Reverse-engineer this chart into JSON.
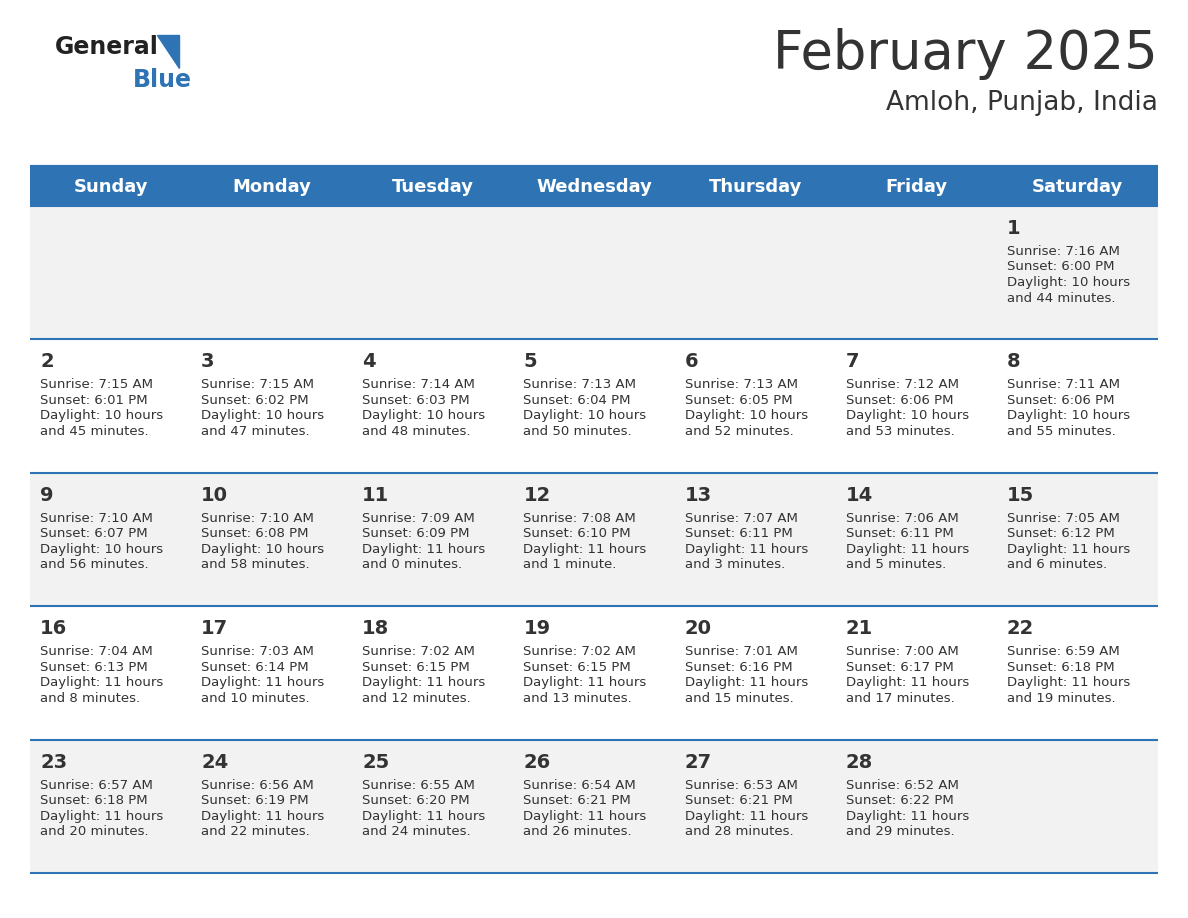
{
  "title": "February 2025",
  "subtitle": "Amloh, Punjab, India",
  "header_color": "#2E74B5",
  "header_text_color": "#FFFFFF",
  "bg_color": "#FFFFFF",
  "cell_bg_odd": "#F2F2F2",
  "cell_bg_even": "#FFFFFF",
  "text_color": "#333333",
  "days_of_week": [
    "Sunday",
    "Monday",
    "Tuesday",
    "Wednesday",
    "Thursday",
    "Friday",
    "Saturday"
  ],
  "weeks": [
    [
      {
        "day": "",
        "sunrise": "",
        "sunset": "",
        "daylight": ""
      },
      {
        "day": "",
        "sunrise": "",
        "sunset": "",
        "daylight": ""
      },
      {
        "day": "",
        "sunrise": "",
        "sunset": "",
        "daylight": ""
      },
      {
        "day": "",
        "sunrise": "",
        "sunset": "",
        "daylight": ""
      },
      {
        "day": "",
        "sunrise": "",
        "sunset": "",
        "daylight": ""
      },
      {
        "day": "",
        "sunrise": "",
        "sunset": "",
        "daylight": ""
      },
      {
        "day": "1",
        "sunrise": "Sunrise: 7:16 AM",
        "sunset": "Sunset: 6:00 PM",
        "daylight": "Daylight: 10 hours\nand 44 minutes."
      }
    ],
    [
      {
        "day": "2",
        "sunrise": "Sunrise: 7:15 AM",
        "sunset": "Sunset: 6:01 PM",
        "daylight": "Daylight: 10 hours\nand 45 minutes."
      },
      {
        "day": "3",
        "sunrise": "Sunrise: 7:15 AM",
        "sunset": "Sunset: 6:02 PM",
        "daylight": "Daylight: 10 hours\nand 47 minutes."
      },
      {
        "day": "4",
        "sunrise": "Sunrise: 7:14 AM",
        "sunset": "Sunset: 6:03 PM",
        "daylight": "Daylight: 10 hours\nand 48 minutes."
      },
      {
        "day": "5",
        "sunrise": "Sunrise: 7:13 AM",
        "sunset": "Sunset: 6:04 PM",
        "daylight": "Daylight: 10 hours\nand 50 minutes."
      },
      {
        "day": "6",
        "sunrise": "Sunrise: 7:13 AM",
        "sunset": "Sunset: 6:05 PM",
        "daylight": "Daylight: 10 hours\nand 52 minutes."
      },
      {
        "day": "7",
        "sunrise": "Sunrise: 7:12 AM",
        "sunset": "Sunset: 6:06 PM",
        "daylight": "Daylight: 10 hours\nand 53 minutes."
      },
      {
        "day": "8",
        "sunrise": "Sunrise: 7:11 AM",
        "sunset": "Sunset: 6:06 PM",
        "daylight": "Daylight: 10 hours\nand 55 minutes."
      }
    ],
    [
      {
        "day": "9",
        "sunrise": "Sunrise: 7:10 AM",
        "sunset": "Sunset: 6:07 PM",
        "daylight": "Daylight: 10 hours\nand 56 minutes."
      },
      {
        "day": "10",
        "sunrise": "Sunrise: 7:10 AM",
        "sunset": "Sunset: 6:08 PM",
        "daylight": "Daylight: 10 hours\nand 58 minutes."
      },
      {
        "day": "11",
        "sunrise": "Sunrise: 7:09 AM",
        "sunset": "Sunset: 6:09 PM",
        "daylight": "Daylight: 11 hours\nand 0 minutes."
      },
      {
        "day": "12",
        "sunrise": "Sunrise: 7:08 AM",
        "sunset": "Sunset: 6:10 PM",
        "daylight": "Daylight: 11 hours\nand 1 minute."
      },
      {
        "day": "13",
        "sunrise": "Sunrise: 7:07 AM",
        "sunset": "Sunset: 6:11 PM",
        "daylight": "Daylight: 11 hours\nand 3 minutes."
      },
      {
        "day": "14",
        "sunrise": "Sunrise: 7:06 AM",
        "sunset": "Sunset: 6:11 PM",
        "daylight": "Daylight: 11 hours\nand 5 minutes."
      },
      {
        "day": "15",
        "sunrise": "Sunrise: 7:05 AM",
        "sunset": "Sunset: 6:12 PM",
        "daylight": "Daylight: 11 hours\nand 6 minutes."
      }
    ],
    [
      {
        "day": "16",
        "sunrise": "Sunrise: 7:04 AM",
        "sunset": "Sunset: 6:13 PM",
        "daylight": "Daylight: 11 hours\nand 8 minutes."
      },
      {
        "day": "17",
        "sunrise": "Sunrise: 7:03 AM",
        "sunset": "Sunset: 6:14 PM",
        "daylight": "Daylight: 11 hours\nand 10 minutes."
      },
      {
        "day": "18",
        "sunrise": "Sunrise: 7:02 AM",
        "sunset": "Sunset: 6:15 PM",
        "daylight": "Daylight: 11 hours\nand 12 minutes."
      },
      {
        "day": "19",
        "sunrise": "Sunrise: 7:02 AM",
        "sunset": "Sunset: 6:15 PM",
        "daylight": "Daylight: 11 hours\nand 13 minutes."
      },
      {
        "day": "20",
        "sunrise": "Sunrise: 7:01 AM",
        "sunset": "Sunset: 6:16 PM",
        "daylight": "Daylight: 11 hours\nand 15 minutes."
      },
      {
        "day": "21",
        "sunrise": "Sunrise: 7:00 AM",
        "sunset": "Sunset: 6:17 PM",
        "daylight": "Daylight: 11 hours\nand 17 minutes."
      },
      {
        "day": "22",
        "sunrise": "Sunrise: 6:59 AM",
        "sunset": "Sunset: 6:18 PM",
        "daylight": "Daylight: 11 hours\nand 19 minutes."
      }
    ],
    [
      {
        "day": "23",
        "sunrise": "Sunrise: 6:57 AM",
        "sunset": "Sunset: 6:18 PM",
        "daylight": "Daylight: 11 hours\nand 20 minutes."
      },
      {
        "day": "24",
        "sunrise": "Sunrise: 6:56 AM",
        "sunset": "Sunset: 6:19 PM",
        "daylight": "Daylight: 11 hours\nand 22 minutes."
      },
      {
        "day": "25",
        "sunrise": "Sunrise: 6:55 AM",
        "sunset": "Sunset: 6:20 PM",
        "daylight": "Daylight: 11 hours\nand 24 minutes."
      },
      {
        "day": "26",
        "sunrise": "Sunrise: 6:54 AM",
        "sunset": "Sunset: 6:21 PM",
        "daylight": "Daylight: 11 hours\nand 26 minutes."
      },
      {
        "day": "27",
        "sunrise": "Sunrise: 6:53 AM",
        "sunset": "Sunset: 6:21 PM",
        "daylight": "Daylight: 11 hours\nand 28 minutes."
      },
      {
        "day": "28",
        "sunrise": "Sunrise: 6:52 AM",
        "sunset": "Sunset: 6:22 PM",
        "daylight": "Daylight: 11 hours\nand 29 minutes."
      },
      {
        "day": "",
        "sunrise": "",
        "sunset": "",
        "daylight": ""
      }
    ]
  ],
  "logo_general_color": "#222222",
  "logo_blue_color": "#2E74B5",
  "title_fontsize": 38,
  "subtitle_fontsize": 19,
  "header_fontsize": 13,
  "day_num_fontsize": 14,
  "cell_text_fontsize": 9.5
}
